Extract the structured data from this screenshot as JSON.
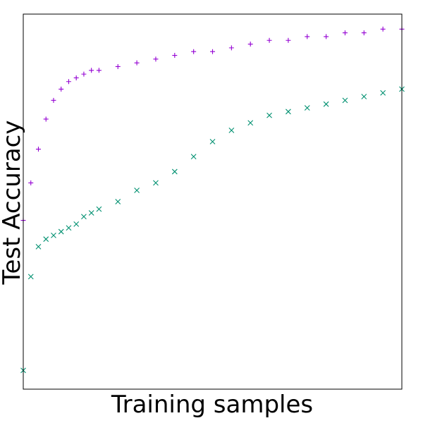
{
  "chart_data": {
    "type": "scatter",
    "title": "",
    "xlabel": "Training samples",
    "ylabel": "Test Accuracy",
    "xlim": [
      0,
      1
    ],
    "ylim": [
      0,
      1
    ],
    "grid": false,
    "legend": "none",
    "x_ticks_shown": false,
    "y_ticks_shown": false,
    "series": [
      {
        "marker": "plus",
        "color": "#9400d3",
        "x": [
          0.0,
          0.02,
          0.04,
          0.06,
          0.08,
          0.1,
          0.12,
          0.14,
          0.16,
          0.18,
          0.2,
          0.25,
          0.3,
          0.35,
          0.4,
          0.45,
          0.5,
          0.55,
          0.6,
          0.65,
          0.7,
          0.75,
          0.8,
          0.85,
          0.9,
          0.95,
          1.0
        ],
        "y": [
          0.45,
          0.55,
          0.64,
          0.72,
          0.77,
          0.8,
          0.82,
          0.83,
          0.84,
          0.85,
          0.85,
          0.86,
          0.87,
          0.88,
          0.89,
          0.9,
          0.9,
          0.91,
          0.92,
          0.93,
          0.93,
          0.94,
          0.94,
          0.95,
          0.95,
          0.96,
          0.96
        ]
      },
      {
        "marker": "x",
        "color": "#009070",
        "x": [
          0.0,
          0.02,
          0.04,
          0.06,
          0.08,
          0.1,
          0.12,
          0.14,
          0.16,
          0.18,
          0.2,
          0.25,
          0.3,
          0.35,
          0.4,
          0.45,
          0.5,
          0.55,
          0.6,
          0.65,
          0.7,
          0.75,
          0.8,
          0.85,
          0.9,
          0.95,
          1.0
        ],
        "y": [
          0.05,
          0.3,
          0.38,
          0.4,
          0.41,
          0.42,
          0.43,
          0.44,
          0.46,
          0.47,
          0.48,
          0.5,
          0.53,
          0.55,
          0.58,
          0.62,
          0.66,
          0.69,
          0.71,
          0.73,
          0.74,
          0.75,
          0.76,
          0.77,
          0.78,
          0.79,
          0.8
        ]
      }
    ]
  }
}
